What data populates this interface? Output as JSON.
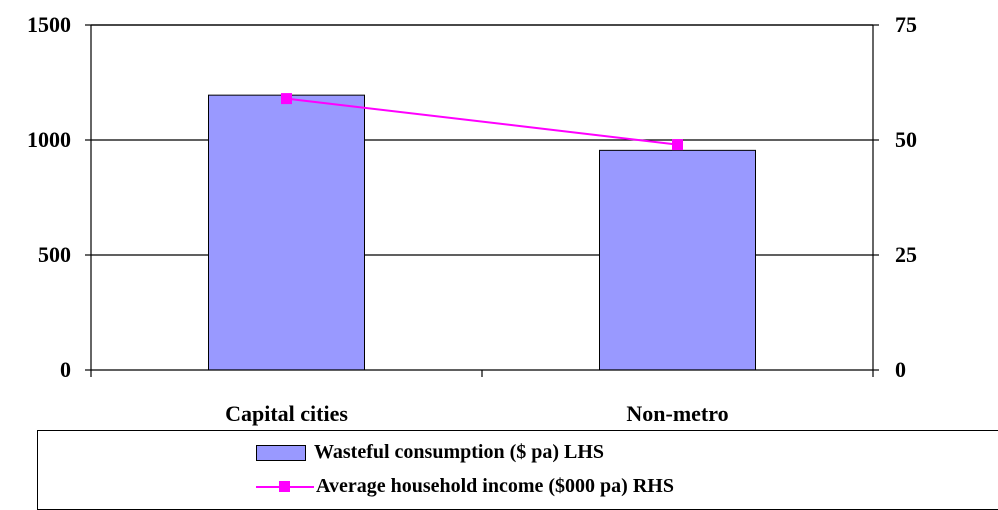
{
  "chart_data": {
    "type": "bar",
    "categories": [
      "Capital cities",
      "Non-metro"
    ],
    "series": [
      {
        "name": "Wasteful consumption ($ pa) LHS",
        "type": "bar",
        "axis": "left",
        "values": [
          1195,
          955
        ],
        "color": "#9999FF"
      },
      {
        "name": "Average household income ($000 pa) RHS",
        "type": "line",
        "axis": "right",
        "values": [
          59,
          49
        ],
        "color": "#FF00FF"
      }
    ],
    "y_left": {
      "ticks": [
        "0",
        "500",
        "1000",
        "1500"
      ],
      "range": [
        0,
        1500
      ]
    },
    "y_right": {
      "ticks": [
        "0",
        "25",
        "50",
        "75"
      ],
      "range": [
        0,
        75
      ]
    },
    "grid": true,
    "legend_position": "bottom"
  }
}
